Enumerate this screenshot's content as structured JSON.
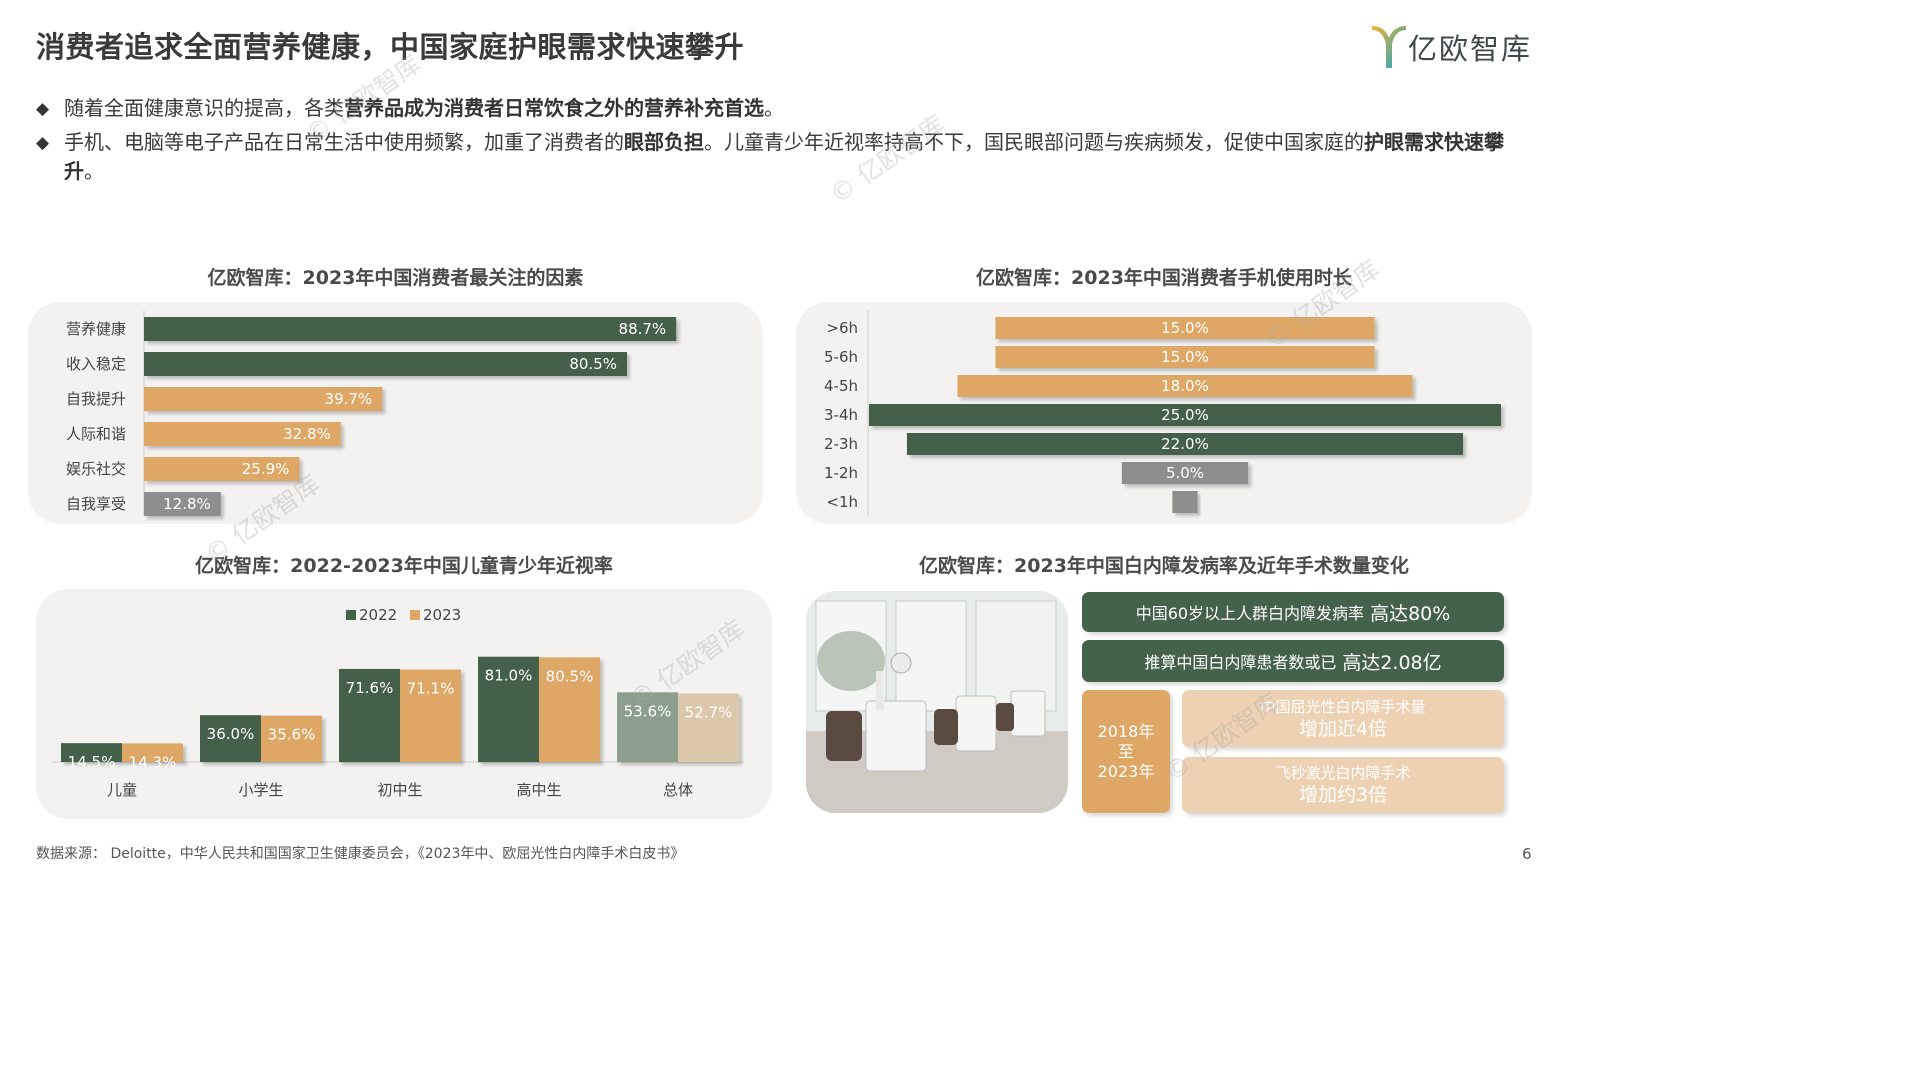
{
  "header": {
    "title": "消费者追求全面营养健康，中国家庭护眼需求快速攀升",
    "logo_text": "亿欧智库"
  },
  "bullets": [
    {
      "marker": "◆",
      "segments": [
        {
          "text": "随着全面健康意识的提高，各类",
          "bold": false
        },
        {
          "text": "营养品成为消费者日常饮食之外的营养补充首选",
          "bold": true
        },
        {
          "text": "。",
          "bold": false
        }
      ]
    },
    {
      "marker": "◆",
      "segments": [
        {
          "text": "手机、电脑等电子产品在日常生活中使用频繁，加重了消费者的",
          "bold": false
        },
        {
          "text": "眼部负担",
          "bold": true
        },
        {
          "text": "。儿童青少年近视率持高不下，国民眼部问题与疾病频发，促使中国家庭的",
          "bold": false
        },
        {
          "text": "护眼需求快速攀升",
          "bold": true
        },
        {
          "text": "。",
          "bold": false
        }
      ]
    }
  ],
  "chart_data": [
    {
      "type": "bar",
      "orientation": "horizontal",
      "title": "亿欧智库：2023年中国消费者最关注的因素",
      "categories": [
        "营养健康",
        "收入稳定",
        "自我提升",
        "人际和谐",
        "娱乐社交",
        "自我享受"
      ],
      "values": [
        88.7,
        80.5,
        39.7,
        32.8,
        25.9,
        12.8
      ],
      "value_labels": [
        "88.7%",
        "80.5%",
        "39.7%",
        "32.8%",
        "25.9%",
        "12.8%"
      ],
      "bar_colors": [
        "#44614a",
        "#44614a",
        "#dea766",
        "#dea766",
        "#dea766",
        "#8e8e8e"
      ],
      "xlim": [
        0,
        100
      ]
    },
    {
      "type": "bar",
      "orientation": "horizontal-centered",
      "title": "亿欧智库：2023年中国消费者手机使用时长",
      "categories": [
        ">6h",
        "5-6h",
        "4-5h",
        "3-4h",
        "2-3h",
        "1-2h",
        "<1h"
      ],
      "values": [
        15.0,
        15.0,
        18.0,
        25.0,
        22.0,
        5.0,
        1.0
      ],
      "value_labels": [
        "15.0%",
        "15.0%",
        "18.0%",
        "25.0%",
        "22.0%",
        "5.0%",
        ""
      ],
      "bar_colors": [
        "#dea766",
        "#dea766",
        "#dea766",
        "#44614a",
        "#44614a",
        "#8e8e8e",
        "#8e8e8e"
      ],
      "xlim": [
        0,
        25
      ]
    },
    {
      "type": "bar",
      "orientation": "vertical",
      "title": "亿欧智库：2022-2023年中国儿童青少年近视率",
      "categories": [
        "儿童",
        "小学生",
        "初中生",
        "高中生",
        "总体"
      ],
      "series": [
        {
          "name": "2022",
          "values": [
            14.5,
            36.0,
            71.6,
            81.0,
            53.6
          ],
          "value_labels": [
            "14.5%",
            "36.0%",
            "71.6%",
            "81.0%",
            "53.6%"
          ],
          "color": "#44614a",
          "last_color": "#8c9e8c"
        },
        {
          "name": "2023",
          "values": [
            14.3,
            35.6,
            71.1,
            80.5,
            52.7
          ],
          "value_labels": [
            "14.3%",
            "35.6%",
            "71.1%",
            "80.5%",
            "52.7%"
          ],
          "color": "#dea766",
          "last_color": "#dbc7aa"
        }
      ],
      "legend_position": "top",
      "ylim": [
        0,
        100
      ]
    }
  ],
  "cataract": {
    "title": "亿欧智库：2023年中国白内障发病率及近年手术数量变化",
    "row1": {
      "text": "中国60岁以上人群白内障发病率",
      "highlight": "高达80%"
    },
    "row2": {
      "text": "推算中国白内障患者数或已",
      "highlight": "高达2.08亿"
    },
    "period": {
      "line1": "2018年",
      "line2": "至",
      "line3": "2023年"
    },
    "item1": {
      "line1": "中国屈光性白内障手术量",
      "line2": "增加近4倍"
    },
    "item2": {
      "line1": "飞秒激光白内障手术",
      "line2": "增加约3倍"
    }
  },
  "footer": {
    "source": "数据来源：  Deloitte，中华人民共和国国家卫生健康委员会，《2023年中、欧屈光性白内障手术白皮书》",
    "page_number": "6"
  },
  "watermark_text": "© 亿欧智库",
  "colors": {
    "green": "#44614a",
    "orange": "#dea766",
    "gray": "#8e8e8e",
    "panel_bg": "#f3f2f0"
  }
}
